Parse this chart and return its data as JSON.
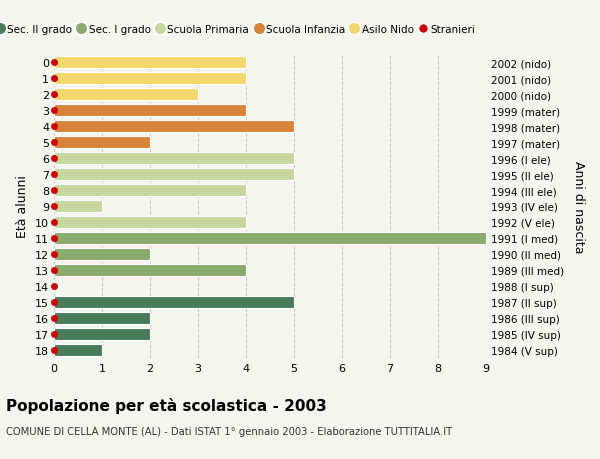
{
  "ages": [
    18,
    17,
    16,
    15,
    14,
    13,
    12,
    11,
    10,
    9,
    8,
    7,
    6,
    5,
    4,
    3,
    2,
    1,
    0
  ],
  "years": [
    "1984 (V sup)",
    "1985 (IV sup)",
    "1986 (III sup)",
    "1987 (II sup)",
    "1988 (I sup)",
    "1989 (III med)",
    "1990 (II med)",
    "1991 (I med)",
    "1992 (V ele)",
    "1993 (IV ele)",
    "1994 (III ele)",
    "1995 (II ele)",
    "1996 (I ele)",
    "1997 (mater)",
    "1998 (mater)",
    "1999 (mater)",
    "2000 (nido)",
    "2001 (nido)",
    "2002 (nido)"
  ],
  "values": [
    1,
    2,
    2,
    5,
    0,
    4,
    2,
    9,
    4,
    1,
    4,
    5,
    5,
    2,
    5,
    4,
    3,
    4,
    4
  ],
  "colors": [
    "#4a7c59",
    "#4a7c59",
    "#4a7c59",
    "#4a7c59",
    "#4a7c59",
    "#8aaa6e",
    "#8aaa6e",
    "#8aaa6e",
    "#c5d8a0",
    "#c5d8a0",
    "#c5d8a0",
    "#c5d8a0",
    "#c5d8a0",
    "#d9843b",
    "#d9843b",
    "#d9843b",
    "#f5d76e",
    "#f5d76e",
    "#f5d76e"
  ],
  "legend_labels": [
    "Sec. II grado",
    "Sec. I grado",
    "Scuola Primaria",
    "Scuola Infanzia",
    "Asilo Nido",
    "Stranieri"
  ],
  "legend_colors": [
    "#4a7c59",
    "#8aaa6e",
    "#c5d8a0",
    "#d9843b",
    "#f5d76e",
    "#cc0000"
  ],
  "legend_markers": [
    false,
    false,
    false,
    false,
    false,
    true
  ],
  "ylabel_left": "Età alunni",
  "ylabel_right": "Anni di nascita",
  "title": "Popolazione per età scolastica - 2003",
  "subtitle": "COMUNE DI CELLA MONTE (AL) - Dati ISTAT 1° gennaio 2003 - Elaborazione TUTTITALIA.IT",
  "xlim": [
    0,
    9
  ],
  "background_color": "#f5f5f0",
  "grid_color": "#c8c8c8",
  "stranieri_dot_color": "#cc0000"
}
